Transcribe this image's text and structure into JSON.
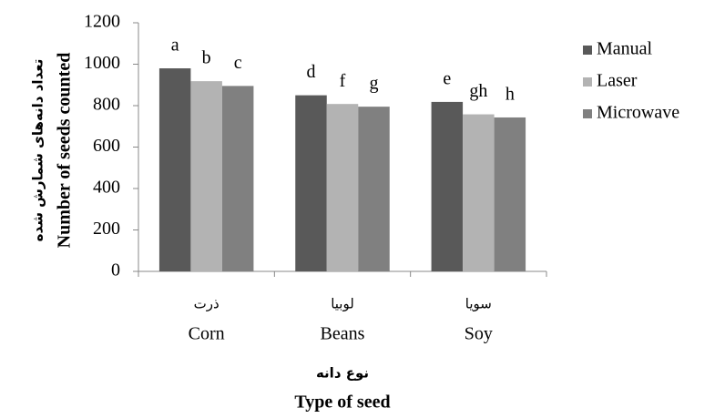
{
  "chart_data": {
    "type": "bar",
    "categories": [
      "Corn",
      "Beans",
      "Soy"
    ],
    "categories_fa": [
      "ذرت",
      "لوبیا",
      "سویا"
    ],
    "x_label": "Type of seed",
    "x_label_fa": "نوع دانه",
    "y_label": "Number of seeds  counted",
    "y_label_fa": "تعداد دانه‌های شمارش شده",
    "series": [
      {
        "name": "Manual",
        "color": "#595959",
        "values": [
          980,
          850,
          818
        ],
        "letters": [
          "a",
          "d",
          "e"
        ]
      },
      {
        "name": "Laser",
        "color": "#b3b3b3",
        "values": [
          918,
          808,
          758
        ],
        "letters": [
          "b",
          "f",
          "gh"
        ]
      },
      {
        "name": "Microwave",
        "color": "#808080",
        "values": [
          895,
          795,
          743
        ],
        "letters": [
          "c",
          "g",
          "h"
        ]
      }
    ],
    "ylim": [
      0,
      1200
    ],
    "yticks": [
      0,
      200,
      400,
      600,
      800,
      1000,
      1200
    ],
    "legend": "right"
  }
}
